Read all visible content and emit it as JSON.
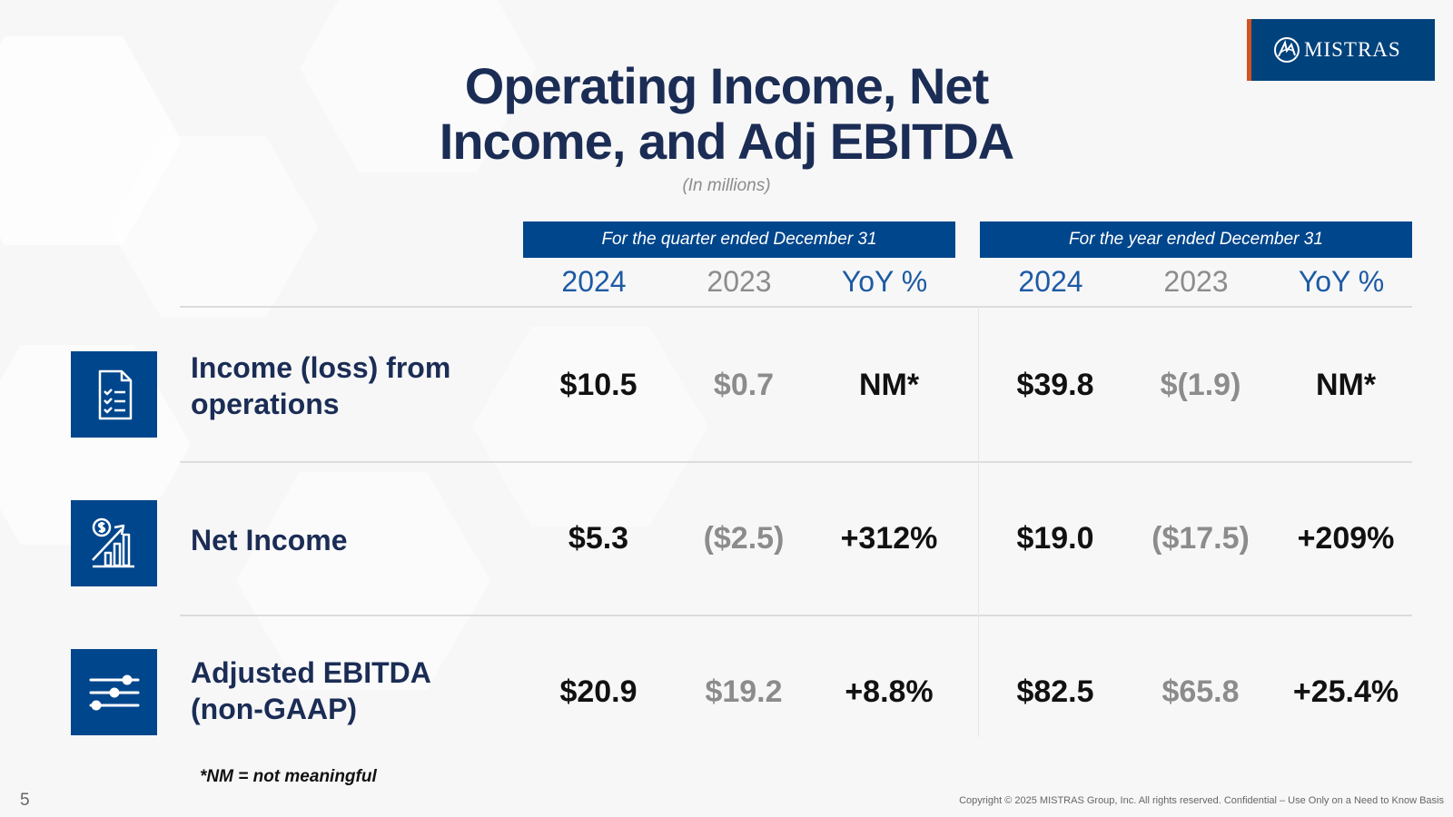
{
  "logo": {
    "brand": "MISTRAS",
    "colors": {
      "bg": "#00427c",
      "accent": "#d2541f"
    }
  },
  "title": "Operating Income, Net Income, and Adj EBITDA",
  "subtitle": "(In millions)",
  "periods": {
    "quarter": "For the quarter ended December 31",
    "year": "For the year ended December 31"
  },
  "columns": {
    "quarter": [
      "2024",
      "2023",
      "YoY %"
    ],
    "year": [
      "2024",
      "2023",
      "YoY %"
    ]
  },
  "rows": [
    {
      "icon": "document-checklist-icon",
      "label": "Income (loss) from operations",
      "quarter": [
        "$10.5",
        "$0.7",
        "NM*"
      ],
      "year": [
        "$39.8",
        "$(1.9)",
        "NM*"
      ]
    },
    {
      "icon": "dollar-growth-chart-icon",
      "label": "Net Income",
      "quarter": [
        "$5.3",
        "($2.5)",
        "+312%"
      ],
      "year": [
        "$19.0",
        "($17.5)",
        "+209%"
      ]
    },
    {
      "icon": "sliders-icon",
      "label": "Adjusted EBITDA (non-GAAP)",
      "quarter": [
        "$20.9",
        "$19.2",
        "+8.8%"
      ],
      "year": [
        "$82.5",
        "$65.8",
        "+25.4%"
      ]
    }
  ],
  "footnote": "*NM = not meaningful",
  "page_number": "5",
  "copyright": "Copyright © 2025 MISTRAS Group, Inc. All rights reserved. Confidential – Use Only on a Need to Know Basis",
  "colors": {
    "navy": "#1b2d55",
    "header_blue": "#00468c",
    "year_blue": "#1d5aa3",
    "prior_grey": "#8c8c8c"
  }
}
